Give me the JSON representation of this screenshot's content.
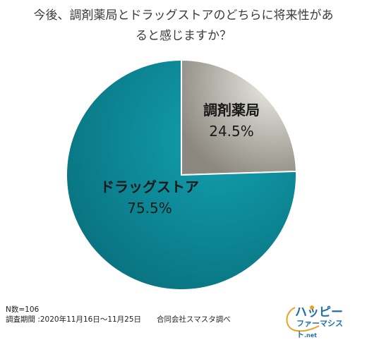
{
  "title": "今後、調剤薬局とドラッグストアのどちらに将来性があ\nると感じますか？",
  "chart_data": {
    "type": "pie",
    "slices": [
      {
        "label": "調剤薬局",
        "value": 24.5,
        "value_label": "24.5%",
        "color": "#e8e8e0"
      },
      {
        "label": "ドラッグストア",
        "value": 75.5,
        "value_label": "75.5%",
        "color": "#0f8d9c"
      }
    ]
  },
  "footer": {
    "sample": "N数=106",
    "period": "調査期間 :2020年11月16日～11月25日",
    "source": "合同会社スマスタ調べ"
  },
  "logo": {
    "line1": "ハッピー",
    "line2": "ファーマシスト",
    "suffix": ".net"
  }
}
